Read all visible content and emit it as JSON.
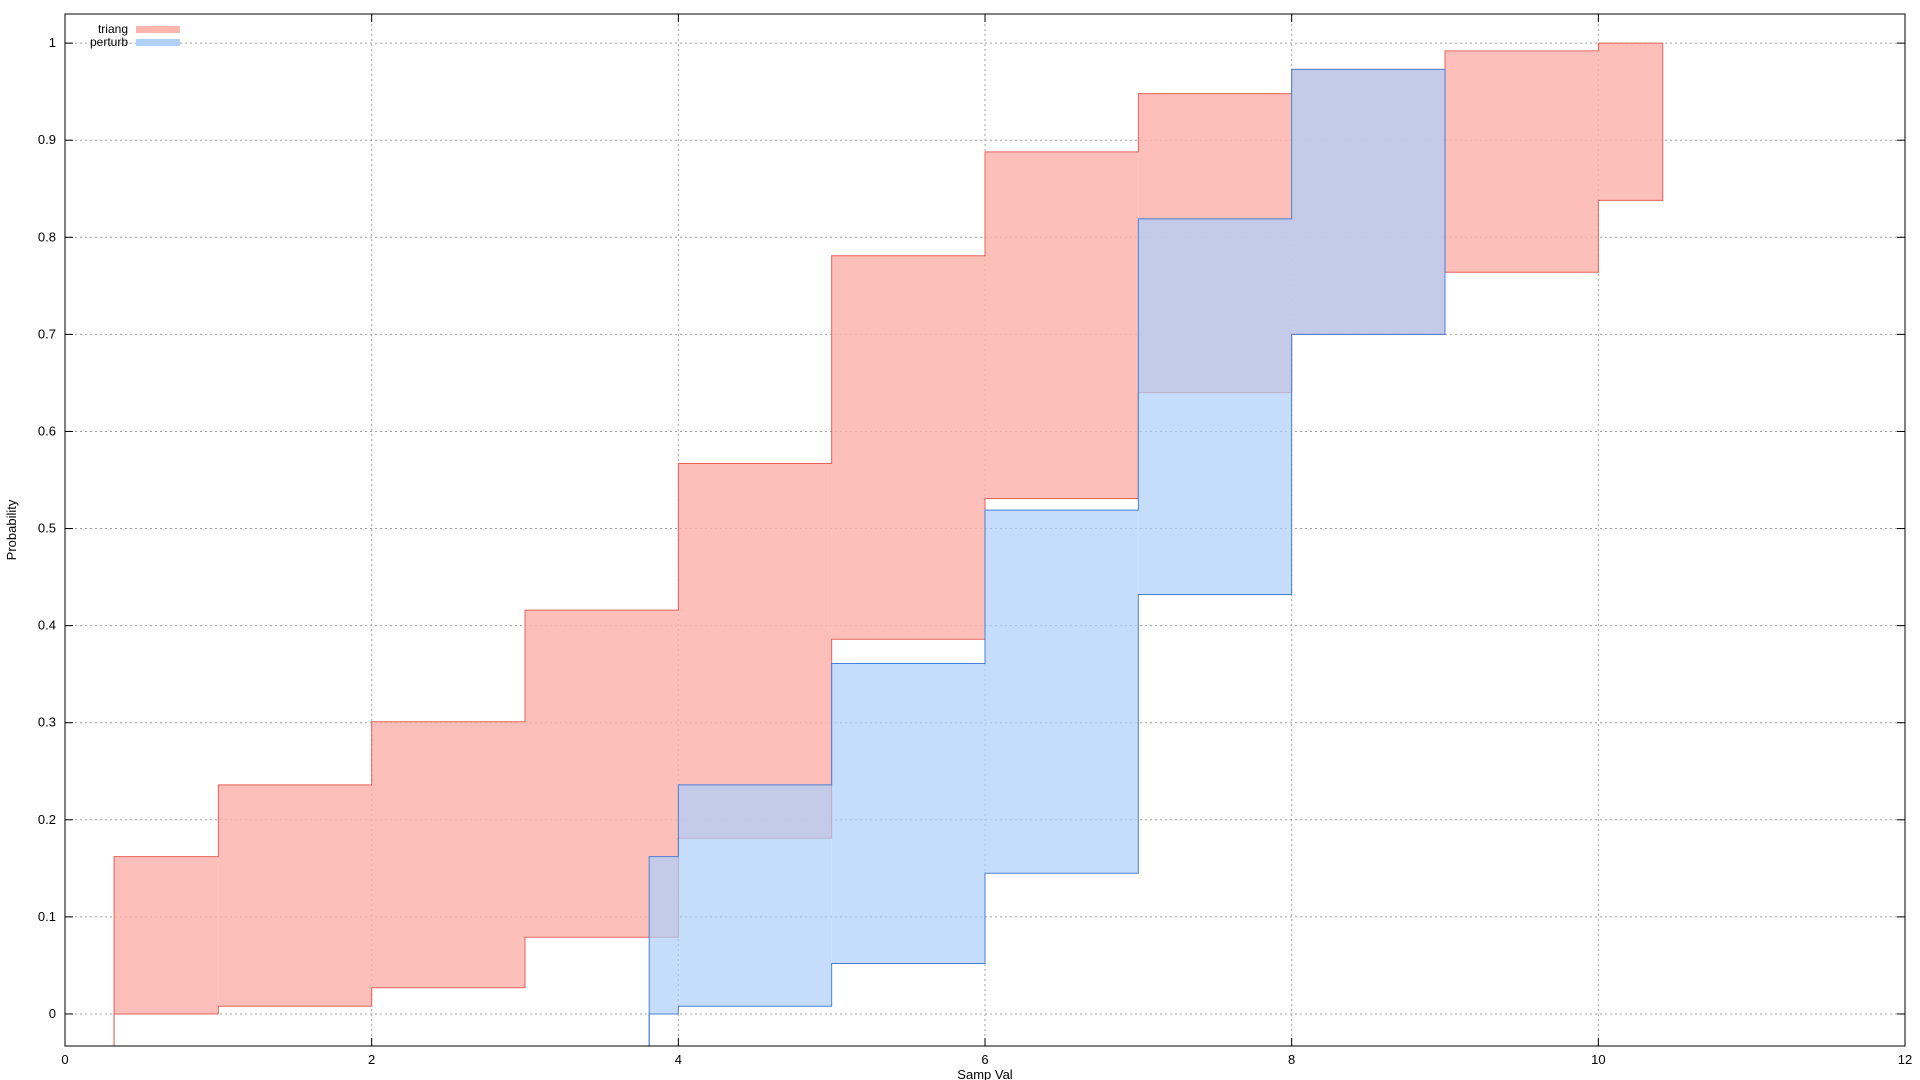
{
  "chart_data": {
    "type": "area",
    "title": "",
    "xlabel": "Samp Val",
    "ylabel": "Probability",
    "xlim": [
      0,
      12
    ],
    "ylim": [
      -0.033,
      1.03
    ],
    "xticks": [
      0,
      2,
      4,
      6,
      8,
      10,
      12
    ],
    "yticks": [
      0,
      0.1,
      0.2,
      0.3,
      0.4,
      0.5,
      0.6,
      0.7,
      0.8,
      0.9,
      1
    ],
    "grid": true,
    "legend_position": "top-left",
    "series": [
      {
        "name": "triang",
        "fill": "#fcb4ad",
        "stroke": "#e8625a",
        "steps": [
          {
            "x0": 0.32,
            "x1": 1.0,
            "lower": 0.0,
            "upper": 0.162
          },
          {
            "x0": 1.0,
            "x1": 2.0,
            "lower": 0.008,
            "upper": 0.236
          },
          {
            "x0": 2.0,
            "x1": 3.0,
            "lower": 0.027,
            "upper": 0.301
          },
          {
            "x0": 3.0,
            "x1": 4.0,
            "lower": 0.079,
            "upper": 0.416
          },
          {
            "x0": 4.0,
            "x1": 5.0,
            "lower": 0.181,
            "upper": 0.567
          },
          {
            "x0": 5.0,
            "x1": 6.0,
            "lower": 0.386,
            "upper": 0.781
          },
          {
            "x0": 6.0,
            "x1": 7.0,
            "lower": 0.531,
            "upper": 0.888
          },
          {
            "x0": 7.0,
            "x1": 8.0,
            "lower": 0.64,
            "upper": 0.948
          },
          {
            "x0": 8.0,
            "x1": 9.0,
            "lower": 0.7,
            "upper": 0.973
          },
          {
            "x0": 9.0,
            "x1": 10.0,
            "lower": 0.764,
            "upper": 0.992
          },
          {
            "x0": 10.0,
            "x1": 10.42,
            "lower": 0.838,
            "upper": 1.0
          }
        ]
      },
      {
        "name": "perturb",
        "fill": "#afd0fa",
        "stroke": "#4a7fd8",
        "steps": [
          {
            "x0": 3.81,
            "x1": 4.0,
            "lower": 0.0,
            "upper": 0.162
          },
          {
            "x0": 4.0,
            "x1": 5.0,
            "lower": 0.008,
            "upper": 0.236
          },
          {
            "x0": 5.0,
            "x1": 6.0,
            "lower": 0.052,
            "upper": 0.361
          },
          {
            "x0": 6.0,
            "x1": 7.0,
            "lower": 0.145,
            "upper": 0.519
          },
          {
            "x0": 7.0,
            "x1": 8.0,
            "lower": 0.432,
            "upper": 0.819
          },
          {
            "x0": 8.0,
            "x1": 9.0,
            "lower": 0.7,
            "upper": 0.973
          }
        ]
      }
    ]
  }
}
